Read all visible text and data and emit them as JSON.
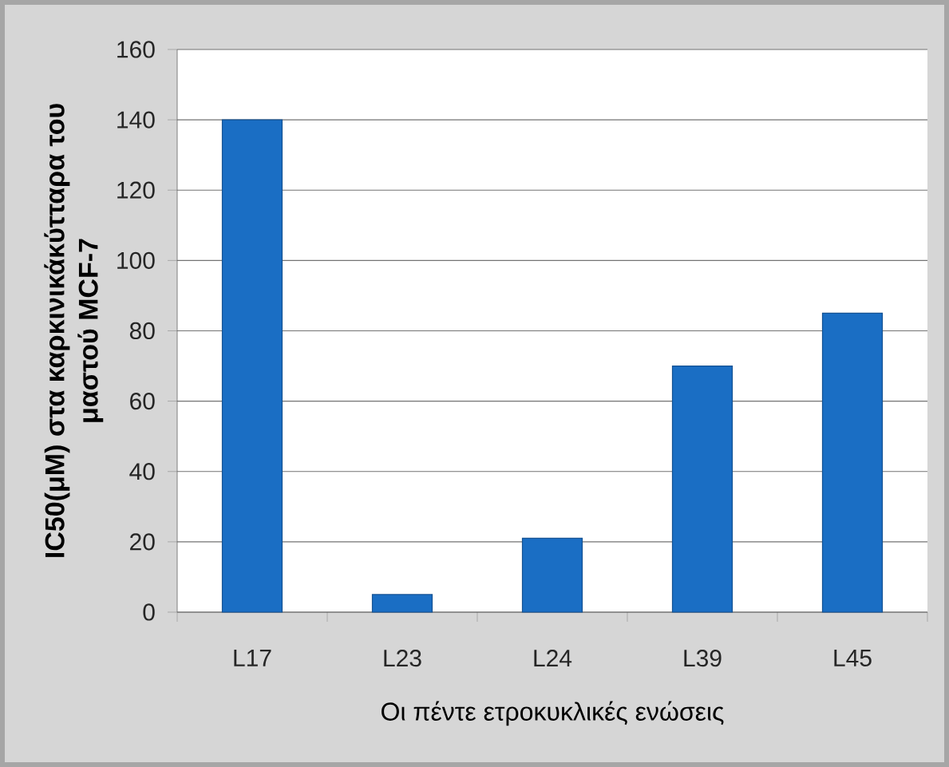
{
  "chart_data": {
    "type": "bar",
    "categories": [
      "L17",
      "L23",
      "L24",
      "L39",
      "L45"
    ],
    "values": [
      140,
      5,
      21,
      70,
      85
    ],
    "color": "#1a6ec4",
    "xlabel": "Οι πέντε ετροκυκλικές ενώσεις",
    "ylabel": "IC50(μM) στα καρκινικάκύτταρα του μαστού MCF-7",
    "ylim": [
      0,
      160
    ],
    "yticks": [
      0,
      20,
      40,
      60,
      80,
      100,
      120,
      140,
      160
    ],
    "grid": "y"
  }
}
